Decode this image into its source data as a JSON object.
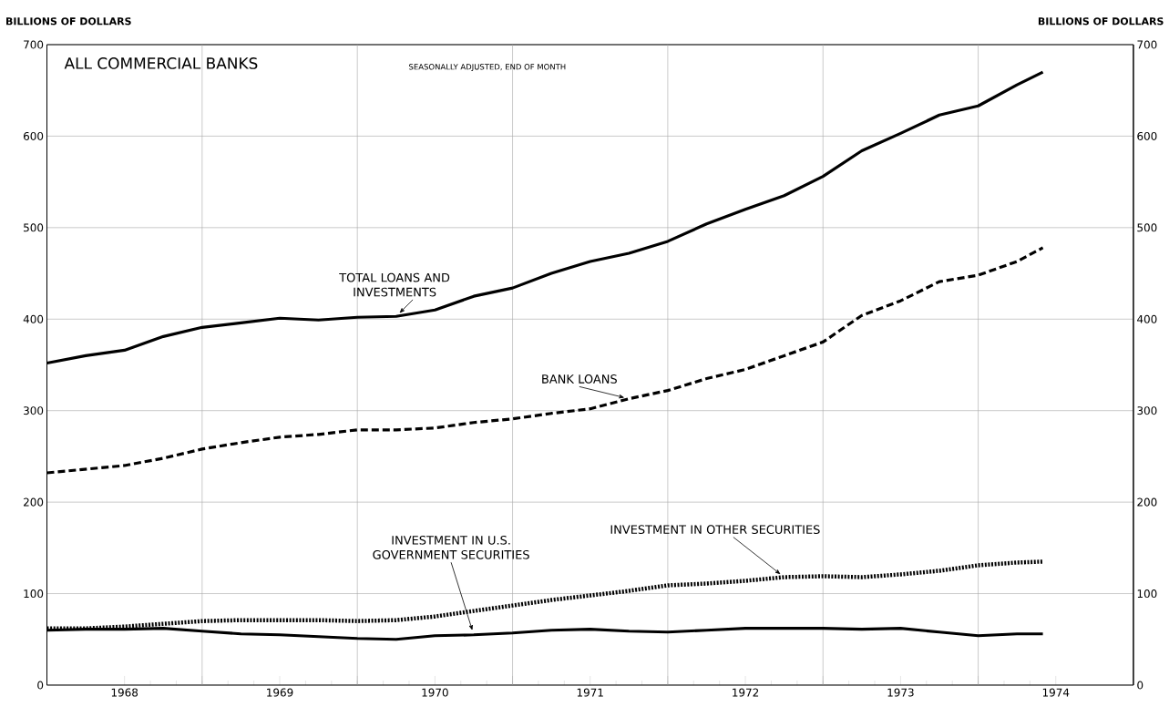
{
  "chart_data": {
    "type": "line",
    "title": "ALL COMMERCIAL BANKS",
    "subtitle": "SEASONALLY ADJUSTED, END OF MONTH",
    "ylabel": "BILLIONS OF DOLLARS",
    "y2label": "BILLIONS OF DOLLARS",
    "x": [
      "1968-01",
      "1968-04",
      "1968-07",
      "1968-10",
      "1969-01",
      "1969-04",
      "1969-07",
      "1969-10",
      "1970-01",
      "1970-04",
      "1970-07",
      "1970-10",
      "1971-01",
      "1971-04",
      "1971-07",
      "1971-10",
      "1972-01",
      "1972-04",
      "1972-07",
      "1972-10",
      "1973-01",
      "1973-04",
      "1973-07",
      "1973-10",
      "1974-01",
      "1974-04",
      "1974-06"
    ],
    "series": [
      {
        "name": "TOTAL LOANS AND INVESTMENTS",
        "color": "#000000",
        "line_style": "solid",
        "values": [
          352,
          360,
          366,
          381,
          391,
          396,
          401,
          399,
          402,
          403,
          410,
          425,
          434,
          450,
          463,
          472,
          485,
          504,
          520,
          535,
          556,
          584,
          603,
          623,
          633,
          656,
          670
        ]
      },
      {
        "name": "BANK LOANS",
        "color": "#000000",
        "line_style": "dashed",
        "values": [
          232,
          236,
          240,
          248,
          258,
          265,
          271,
          274,
          279,
          279,
          281,
          287,
          291,
          297,
          302,
          313,
          322,
          335,
          345,
          360,
          375,
          404,
          420,
          441,
          448,
          463,
          478
        ]
      },
      {
        "name": "INVESTMENT IN U.S. GOVERNMENT SECURITIES",
        "color": "#000000",
        "line_style": "solid",
        "values": [
          60,
          61,
          61,
          62,
          59,
          56,
          55,
          53,
          51,
          50,
          54,
          55,
          57,
          60,
          61,
          59,
          58,
          60,
          62,
          62,
          62,
          61,
          62,
          58,
          54,
          56,
          56
        ]
      },
      {
        "name": "INVESTMENT IN OTHER SECURITIES",
        "color": "#000000",
        "line_style": "dotted",
        "values": [
          62,
          62,
          64,
          67,
          70,
          71,
          71,
          71,
          70,
          71,
          75,
          81,
          87,
          93,
          98,
          103,
          109,
          111,
          114,
          118,
          119,
          118,
          121,
          125,
          131,
          134,
          135
        ]
      }
    ],
    "xlim": [
      "1968-01",
      "1975-01"
    ],
    "xticks": [
      {
        "value": "1968-07",
        "label": "1968"
      },
      {
        "value": "1969-01",
        "label": null
      },
      {
        "value": "1969-07",
        "label": "1969"
      },
      {
        "value": "1970-01",
        "label": null
      },
      {
        "value": "1970-07",
        "label": "1970"
      },
      {
        "value": "1971-01",
        "label": null
      },
      {
        "value": "1971-07",
        "label": "1971"
      },
      {
        "value": "1972-01",
        "label": null
      },
      {
        "value": "1972-07",
        "label": "1972"
      },
      {
        "value": "1973-01",
        "label": null
      },
      {
        "value": "1973-07",
        "label": "1973"
      },
      {
        "value": "1974-01",
        "label": null
      },
      {
        "value": "1974-07",
        "label": "1974"
      }
    ],
    "ylim": [
      0,
      700
    ],
    "yticks": [
      0,
      100,
      200,
      300,
      400,
      500,
      600,
      700
    ],
    "y2lim": [
      0,
      700
    ],
    "y2ticks": [
      0,
      100,
      200,
      300,
      400,
      500,
      600,
      700
    ],
    "grid": true,
    "marker": "none"
  }
}
